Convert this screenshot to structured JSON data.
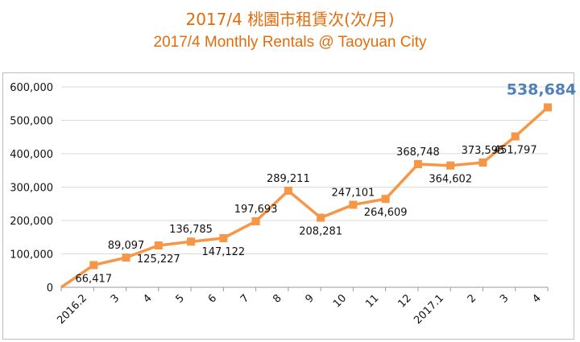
{
  "title_zh": "2017/4 桃園市租賃次(次/月)",
  "title_en": "2017/4 Monthly Rentals @ Taoyuan City",
  "colors": {
    "line": "#f79646",
    "title": "#e36c0a",
    "highlight": "#4f81bd",
    "grid": "#d9d9d9"
  },
  "chart_data": {
    "type": "line",
    "title": "2017/4 Monthly Rentals @ Taoyuan City",
    "categories": [
      "",
      "2016.2",
      "3",
      "4",
      "5",
      "6",
      "7",
      "8",
      "9",
      "10",
      "11",
      "12",
      "2017.1",
      "2",
      "3",
      "4"
    ],
    "values": [
      0,
      66417,
      89097,
      125227,
      136785,
      147122,
      197693,
      289211,
      208281,
      247101,
      264609,
      368748,
      364602,
      373595,
      451797,
      538684
    ],
    "labels": [
      "",
      "66,417",
      "89,097",
      "125,227",
      "136,785",
      "147,122",
      "197,693",
      "289,211",
      "208,281",
      "247,101",
      "264,609",
      "368,748",
      "364,602",
      "373,595",
      "451,797",
      "538,684"
    ],
    "label_pos": [
      "none",
      "below",
      "above",
      "below",
      "above",
      "below",
      "above",
      "above",
      "below",
      "above",
      "below",
      "above",
      "below",
      "above",
      "below",
      "above"
    ],
    "ylim": [
      0,
      600000
    ],
    "yticks": [
      0,
      100000,
      200000,
      300000,
      400000,
      500000,
      600000
    ],
    "ytick_labels": [
      "0",
      "100,000",
      "200,000",
      "300,000",
      "400,000",
      "500,000",
      "600,000"
    ],
    "grid": true,
    "legend": "none"
  }
}
